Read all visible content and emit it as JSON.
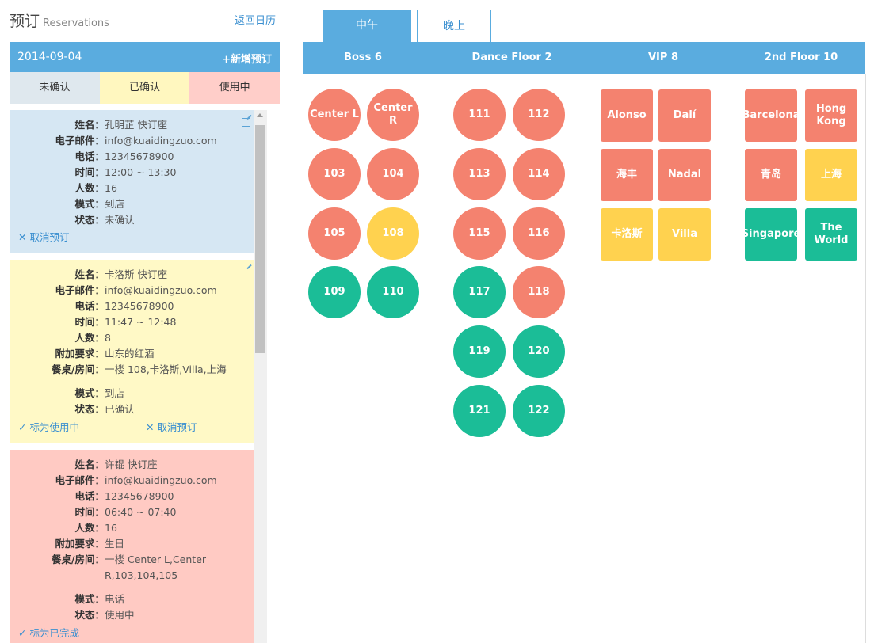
{
  "header": {
    "title": "预订",
    "title_en": "Reservations",
    "back_link": "返回日历"
  },
  "date_bar": {
    "date": "2014-09-04",
    "add_label": "+新增预订"
  },
  "status_tabs": [
    "未确认",
    "已确认",
    "使用中"
  ],
  "reservations": [
    {
      "fields": [
        {
          "label": "姓名：",
          "value": "孔明芷 快订座"
        },
        {
          "label": "电子邮件：",
          "value": "info@kuaidingzuo.com"
        },
        {
          "label": "电话：",
          "value": "12345678900"
        },
        {
          "label": "时间：",
          "value": "12:00 ~ 13:30"
        },
        {
          "label": "人数：",
          "value": "16"
        },
        {
          "label": "模式：",
          "value": "到店"
        },
        {
          "label": "状态：",
          "value": "未确认"
        }
      ],
      "actions": [
        "✕ 取消预订"
      ]
    },
    {
      "fields": [
        {
          "label": "姓名：",
          "value": "卡洛斯 快订座"
        },
        {
          "label": "电子邮件：",
          "value": "info@kuaidingzuo.com"
        },
        {
          "label": "电话：",
          "value": "12345678900"
        },
        {
          "label": "时间：",
          "value": "11:47 ~ 12:48"
        },
        {
          "label": "人数：",
          "value": "8"
        },
        {
          "label": "附加要求：",
          "value": "山东的红酒"
        },
        {
          "label": "餐桌/房间：",
          "value": "一楼 108,卡洛斯,Villa,上海"
        },
        {
          "label": "模式：",
          "value": "到店"
        },
        {
          "label": "状态：",
          "value": "已确认"
        }
      ],
      "actions": [
        "✓ 标为使用中",
        "✕ 取消预订"
      ]
    },
    {
      "fields": [
        {
          "label": "姓名：",
          "value": "许锟 快订座"
        },
        {
          "label": "电子邮件：",
          "value": "info@kuaidingzuo.com"
        },
        {
          "label": "电话：",
          "value": "12345678900"
        },
        {
          "label": "时间：",
          "value": "06:40 ~ 07:40"
        },
        {
          "label": "人数：",
          "value": "16"
        },
        {
          "label": "附加要求：",
          "value": "生日"
        },
        {
          "label": "餐桌/房间：",
          "value": "一楼 Center L,Center"
        },
        {
          "label": "",
          "value": "R,103,104,105"
        },
        {
          "label": "模式：",
          "value": "电话"
        },
        {
          "label": "状态：",
          "value": "使用中"
        }
      ],
      "actions": [
        "✓ 标为已完成"
      ]
    }
  ],
  "meal_tabs": [
    "中午",
    "晚上"
  ],
  "floors": [
    "Boss 6",
    "Dance Floor 2",
    "VIP 8",
    "2nd Floor 10"
  ],
  "tables": {
    "boss": [
      {
        "name": "Center L",
        "status": "red"
      },
      {
        "name": "Center R",
        "status": "red"
      },
      {
        "name": "103",
        "status": "red"
      },
      {
        "name": "104",
        "status": "red"
      },
      {
        "name": "105",
        "status": "red"
      },
      {
        "name": "108",
        "status": "yellow"
      },
      {
        "name": "109",
        "status": "green"
      },
      {
        "name": "110",
        "status": "green"
      }
    ],
    "dance": [
      {
        "name": "111",
        "status": "red"
      },
      {
        "name": "112",
        "status": "red"
      },
      {
        "name": "113",
        "status": "red"
      },
      {
        "name": "114",
        "status": "red"
      },
      {
        "name": "115",
        "status": "red"
      },
      {
        "name": "116",
        "status": "red"
      },
      {
        "name": "117",
        "status": "green"
      },
      {
        "name": "118",
        "status": "red"
      },
      {
        "name": "119",
        "status": "green"
      },
      {
        "name": "120",
        "status": "green"
      },
      {
        "name": "121",
        "status": "green"
      },
      {
        "name": "122",
        "status": "green"
      }
    ],
    "vip": [
      {
        "name": "Alonso",
        "status": "red"
      },
      {
        "name": "Dalí",
        "status": "red"
      },
      {
        "name": "海丰",
        "status": "red"
      },
      {
        "name": "Nadal",
        "status": "red"
      },
      {
        "name": "卡洛斯",
        "status": "yellow"
      },
      {
        "name": "Villa",
        "status": "yellow"
      }
    ],
    "second": [
      {
        "name": "Barcelona",
        "status": "red"
      },
      {
        "name": "Hong Kong",
        "status": "red"
      },
      {
        "name": "青岛",
        "status": "red"
      },
      {
        "name": "上海",
        "status": "yellow"
      },
      {
        "name": "Singapore",
        "status": "green"
      },
      {
        "name": "The World",
        "status": "green"
      }
    ]
  },
  "colors": {
    "accent": "#5aacdf",
    "red": "#f4826f",
    "yellow": "#ffd24f",
    "green": "#1bbd97"
  }
}
